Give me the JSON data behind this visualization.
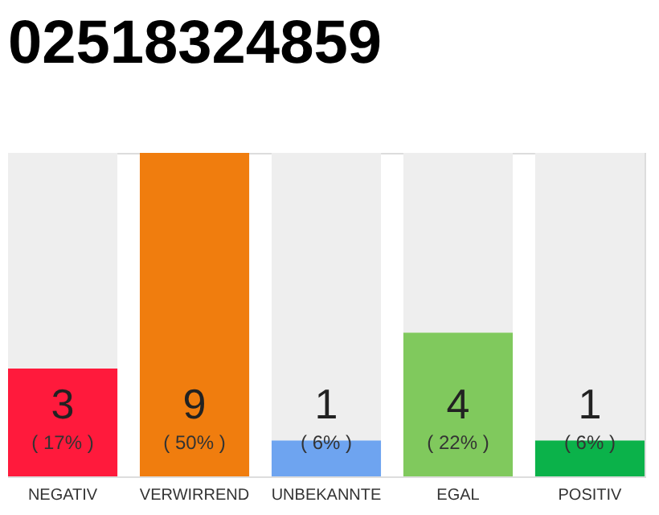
{
  "chart_data": {
    "type": "bar",
    "title": "02518324859",
    "categories": [
      "NEGATIV",
      "VERWIRREND",
      "UNBEKANNTE",
      "EGAL",
      "POSITIV"
    ],
    "stacked": true,
    "ylim": [
      0,
      9
    ],
    "tick_labels": "x",
    "series": [
      {
        "colors": [
          "#ff1a3c",
          "#f07d0e",
          "#6ea4f0",
          "#80c95d",
          "#0bb24a"
        ],
        "values": [
          3,
          9,
          1,
          4,
          1
        ],
        "value_labels": [
          "3",
          "9",
          "1",
          "4",
          "1"
        ]
      },
      {
        "color": "#eeeeee",
        "values": [
          6,
          0,
          8,
          5,
          8
        ]
      }
    ],
    "annotations": [
      "( 17% )",
      "( 50% )",
      "( 6% )",
      "( 22% )",
      "( 6% )"
    ]
  }
}
